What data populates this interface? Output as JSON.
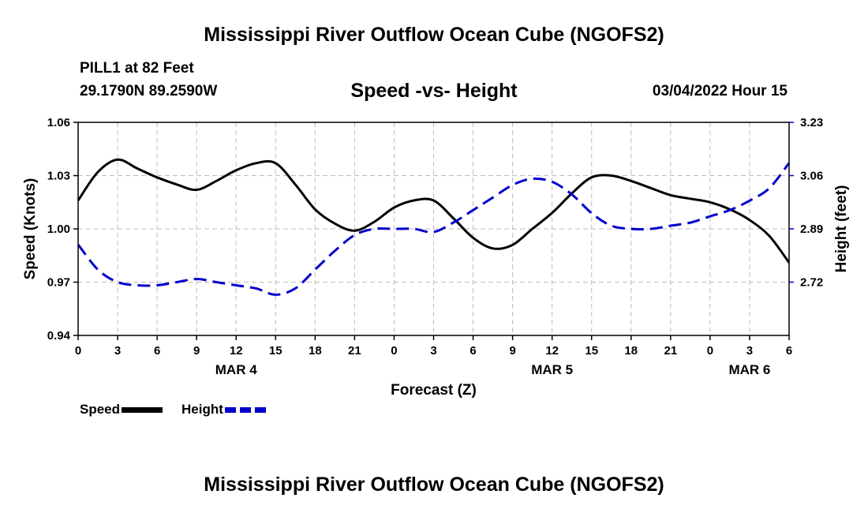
{
  "header": {
    "title": "Mississippi River Outflow Ocean Cube (NGOFS2)",
    "station": "PILL1 at 82 Feet",
    "coords": "29.1790N  89.2590W",
    "subtitle": "Speed -vs- Height",
    "datetime": "03/04/2022 Hour 15"
  },
  "footer": {
    "title": "Mississippi River Outflow Ocean Cube (NGOFS2)"
  },
  "legend": {
    "speed_label": "Speed",
    "height_label": "Height"
  },
  "colors": {
    "speed": "#000000",
    "height": "#0000cc",
    "grid": "#bbbbbb"
  },
  "chart_data": {
    "type": "line",
    "xlabel": "Forecast (Z)",
    "ylabel": "Speed (Knots)",
    "y2label": "Height (feet)",
    "xlim": [
      0,
      54
    ],
    "ylim": [
      0.94,
      1.06
    ],
    "y2lim": [
      2.55,
      3.23
    ],
    "x_ticks": [
      0,
      3,
      6,
      9,
      12,
      15,
      18,
      21,
      24,
      27,
      30,
      33,
      36,
      39,
      42,
      45,
      48,
      51,
      54
    ],
    "x_tick_labels": [
      "0",
      "3",
      "6",
      "9",
      "12",
      "15",
      "18",
      "21",
      "0",
      "3",
      "6",
      "9",
      "12",
      "15",
      "18",
      "21",
      "0",
      "3",
      "6"
    ],
    "date_labels": [
      {
        "x": 12,
        "label": "MAR 4"
      },
      {
        "x": 36,
        "label": "MAR 5"
      },
      {
        "x": 51,
        "label": "MAR 6"
      }
    ],
    "y_ticks": [
      0.94,
      0.97,
      1.0,
      1.03,
      1.06
    ],
    "y_tick_labels": [
      "0.94",
      "0.97",
      "1.00",
      "1.03",
      "1.06"
    ],
    "y2_ticks": [
      2.72,
      2.89,
      3.06,
      3.23
    ],
    "y2_tick_labels": [
      "2.72",
      "2.89",
      "3.06",
      "3.23"
    ],
    "grid": true,
    "series": [
      {
        "name": "Speed",
        "axis": "left",
        "style": "solid",
        "x": [
          0,
          1.5,
          3,
          4.5,
          6,
          7.5,
          9,
          10.5,
          12,
          13.5,
          15,
          16.5,
          18,
          19.5,
          21,
          22.5,
          24,
          25.5,
          27,
          28.5,
          30,
          31.5,
          33,
          34.5,
          36,
          37.5,
          39,
          40.5,
          42,
          43.5,
          45,
          46.5,
          48,
          49.5,
          51,
          52.5,
          54
        ],
        "values": [
          1.016,
          1.032,
          1.039,
          1.034,
          1.029,
          1.025,
          1.022,
          1.027,
          1.033,
          1.037,
          1.037,
          1.025,
          1.011,
          1.003,
          0.999,
          1.004,
          1.012,
          1.016,
          1.016,
          1.006,
          0.995,
          0.989,
          0.991,
          1.0,
          1.009,
          1.02,
          1.029,
          1.03,
          1.027,
          1.023,
          1.019,
          1.017,
          1.015,
          1.011,
          1.005,
          0.996,
          0.981
        ]
      },
      {
        "name": "Height",
        "axis": "right",
        "style": "dashed",
        "x": [
          0,
          1.5,
          3,
          4.5,
          6,
          7.5,
          9,
          10.5,
          12,
          13.5,
          15,
          16.5,
          18,
          19.5,
          21,
          22.5,
          24,
          25.5,
          27,
          28.5,
          30,
          31.5,
          33,
          34.5,
          36,
          37.5,
          39,
          40.5,
          42,
          43.5,
          45,
          46.5,
          48,
          49.5,
          51,
          52.5,
          54
        ],
        "values": [
          2.84,
          2.76,
          2.72,
          2.71,
          2.71,
          2.72,
          2.73,
          2.72,
          2.71,
          2.7,
          2.68,
          2.7,
          2.76,
          2.82,
          2.87,
          2.89,
          2.89,
          2.89,
          2.88,
          2.91,
          2.95,
          2.99,
          3.03,
          3.05,
          3.04,
          3.0,
          2.94,
          2.9,
          2.89,
          2.89,
          2.9,
          2.91,
          2.93,
          2.95,
          2.98,
          3.02,
          3.1
        ]
      }
    ]
  }
}
